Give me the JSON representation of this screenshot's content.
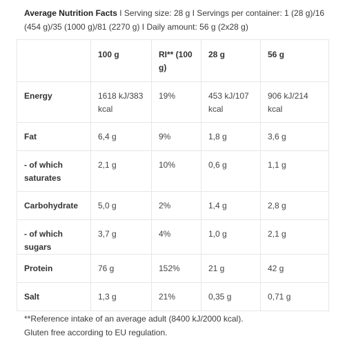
{
  "header": {
    "title": "Average Nutrition Facts",
    "text": " I Serving size: 28 g I Servings per container: 1 (28 g)/16 (454 g)/35 (1000 g)/81 (2270 g) I Daily amount: 56 g (2x28 g)"
  },
  "table": {
    "columns": [
      "",
      "100 g",
      "RI** (100 g)",
      "28 g",
      "56 g"
    ],
    "rows": [
      {
        "label": "Energy",
        "c1": "1618 kJ/383 kcal",
        "c2": "19%",
        "c3": "453 kJ/107 kcal",
        "c4": "906 kJ/214 kcal"
      },
      {
        "label": "Fat",
        "c1": "6,4 g",
        "c2": "9%",
        "c3": "1,8 g",
        "c4": "3,6 g"
      },
      {
        "label": "- of which saturates",
        "c1": "2,1 g",
        "c2": "10%",
        "c3": "0,6 g",
        "c4": "1,1 g"
      },
      {
        "label": "Carbohydrate",
        "c1": "5,0 g",
        "c2": "2%",
        "c3": "1,4 g",
        "c4": "2,8 g"
      },
      {
        "label": "- of which sugars",
        "c1": "3,7 g",
        "c2": "4%",
        "c3": "1,0 g",
        "c4": "2,1 g"
      },
      {
        "label": "Protein",
        "c1": "76 g",
        "c2": "152%",
        "c3": "21 g",
        "c4": "42 g"
      },
      {
        "label": "Salt",
        "c1": "1,3 g",
        "c2": "21%",
        "c3": "0,35 g",
        "c4": "0,71 g"
      }
    ]
  },
  "footer": {
    "note": "**Reference intake of an average adult (8400 kJ/2000 kcal).",
    "gluten": "Gluten free according to EU regulation."
  }
}
